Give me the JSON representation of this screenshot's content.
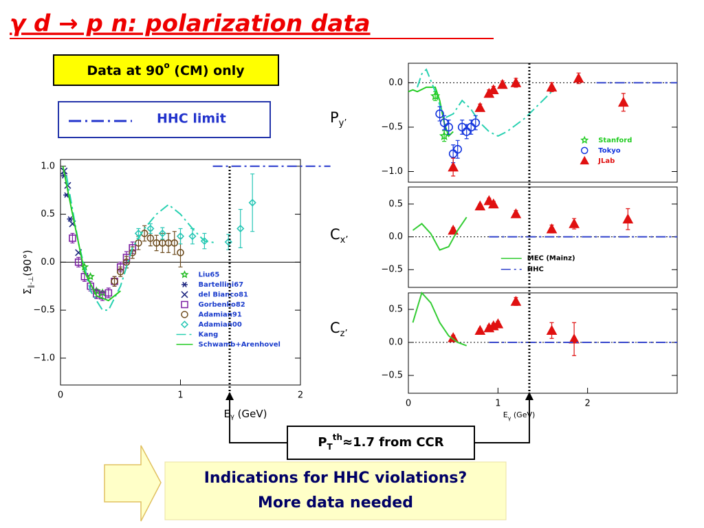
{
  "title": "γ d → p n: polarization data",
  "data_note": {
    "text": "Data at 90",
    "sup": "o",
    "tail": " (CM) only"
  },
  "hhc_box": "HHC limit",
  "threshold_box": {
    "main": "P",
    "sub": "T",
    "sup": "th",
    "tail": "≈1.7 from CCR"
  },
  "conclusion": [
    "Indications for HHC violations?",
    "More data needed"
  ],
  "chart_data": [
    {
      "type": "scatter",
      "ylabel": "Σ",
      "ylabel_sub": "∥-⊥",
      "ylabel_tail": "(90°)",
      "xlabel": "E",
      "xlabel_sub": "γ",
      "xlabel_tail": " (GeV)",
      "xlim": [
        0,
        2
      ],
      "ylim": [
        -1.28,
        1.07
      ],
      "xticks": [
        0,
        1,
        2
      ],
      "yticks": [
        {
          "value": 1,
          "label": "1.0"
        },
        0.5,
        {
          "value": 0,
          "label": "0.0"
        },
        {
          "value": -0.5,
          "label": "−0.5"
        },
        {
          "value": -1,
          "label": "−1.0"
        }
      ],
      "zero_line": "solid",
      "legend": "lower right",
      "threshold_x": 1.41,
      "series": [
        {
          "name": "Liu65",
          "color": "#22bb22",
          "marker": "star",
          "x": [
            0.2,
            0.25,
            0.3,
            0.35
          ],
          "values": [
            -0.05,
            -0.15,
            -0.3,
            -0.32
          ]
        },
        {
          "name": "Bartellini67",
          "color": "#1a237e",
          "marker": "asterisk",
          "x": [
            0.03,
            0.05,
            0.08
          ],
          "values": [
            0.9,
            0.7,
            0.45
          ]
        },
        {
          "name": "del Bianco81",
          "color": "#1a237e",
          "marker": "x",
          "x": [
            0.03,
            0.06,
            0.1,
            0.15
          ],
          "values": [
            0.95,
            0.8,
            0.4,
            0.1
          ]
        },
        {
          "name": "Gorbenko82",
          "color": "#7b1fa2",
          "marker": "square",
          "x": [
            0.1,
            0.15,
            0.2,
            0.25,
            0.3,
            0.35,
            0.4,
            0.45,
            0.5,
            0.55,
            0.6
          ],
          "values": [
            0.25,
            0.0,
            -0.15,
            -0.25,
            -0.33,
            -0.35,
            -0.32,
            -0.2,
            -0.05,
            0.05,
            0.15
          ],
          "errors": [
            0.05,
            0.05,
            0.05,
            0.05,
            0.05,
            0.05,
            0.05,
            0.05,
            0.05,
            0.06,
            0.06
          ]
        },
        {
          "name": "Adamian91",
          "color": "#6d4c1f",
          "marker": "circle",
          "x": [
            0.45,
            0.5,
            0.55,
            0.6,
            0.65,
            0.7,
            0.75,
            0.8,
            0.85,
            0.9,
            0.95,
            1.0
          ],
          "values": [
            -0.2,
            -0.1,
            0.0,
            0.1,
            0.2,
            0.3,
            0.25,
            0.2,
            0.2,
            0.2,
            0.2,
            0.1
          ],
          "errors": [
            0.05,
            0.05,
            0.06,
            0.06,
            0.07,
            0.08,
            0.08,
            0.08,
            0.1,
            0.1,
            0.12,
            0.15
          ]
        },
        {
          "name": "Adamian00",
          "color": "#26c6b5",
          "marker": "diamond",
          "x": [
            0.65,
            0.75,
            0.85,
            1.0,
            1.1,
            1.2,
            1.4,
            1.5,
            1.6
          ],
          "values": [
            0.3,
            0.35,
            0.3,
            0.27,
            0.27,
            0.22,
            0.21,
            0.35,
            0.62
          ],
          "errors": [
            0.05,
            0.05,
            0.06,
            0.08,
            0.08,
            0.08,
            0.08,
            0.2,
            0.3
          ]
        },
        {
          "name": "Kang",
          "color": "#26d0b0",
          "line": "dashdot",
          "x": [
            0.05,
            0.15,
            0.25,
            0.35,
            0.4,
            0.5,
            0.6,
            0.7,
            0.8,
            0.9,
            1.0,
            1.1,
            1.2,
            1.3
          ],
          "values": [
            0.9,
            0.2,
            -0.3,
            -0.5,
            -0.5,
            -0.25,
            0.15,
            0.35,
            0.5,
            0.6,
            0.5,
            0.35,
            0.22,
            0.2
          ]
        },
        {
          "name": "Schwamb+Arenhovel",
          "color": "#22cc22",
          "line": "solid",
          "x": [
            0.02,
            0.1,
            0.2,
            0.3,
            0.4,
            0.5
          ],
          "values": [
            1.0,
            0.5,
            -0.1,
            -0.35,
            -0.4,
            -0.3
          ]
        },
        {
          "color": "#2233cc",
          "line": "dashdot",
          "x": [
            1.27,
            2.25
          ],
          "values": [
            1,
            1
          ]
        }
      ]
    },
    {
      "type": "scatter",
      "ylabel": "P",
      "ylabel_sub": "y’",
      "xlim": [
        0,
        3
      ],
      "ylim": [
        -1.12,
        0.22
      ],
      "yticks": [
        {
          "value": 0,
          "label": "0.0"
        },
        {
          "value": -0.5,
          "label": "−0.5"
        },
        {
          "value": -1,
          "label": "−1.0"
        }
      ],
      "zero_line": "dotted",
      "legend": "lower right",
      "threshold_x": 1.35,
      "series": [
        {
          "color": "#22cc22",
          "line": "solid",
          "x": [
            0.0,
            0.05,
            0.1,
            0.2,
            0.3,
            0.35,
            0.4,
            0.45,
            0.5
          ],
          "values": [
            -0.1,
            -0.08,
            -0.1,
            -0.05,
            -0.05,
            -0.2,
            -0.45,
            -0.6,
            -0.55
          ]
        },
        {
          "color": "#26d0b0",
          "line": "dashdot",
          "x": [
            0.1,
            0.15,
            0.2,
            0.3,
            0.4,
            0.5,
            0.6,
            0.7,
            0.8,
            0.9,
            1.0,
            1.1,
            1.3,
            1.5,
            1.6
          ],
          "values": [
            -0.05,
            0.1,
            0.15,
            -0.1,
            -0.4,
            -0.35,
            -0.2,
            -0.3,
            -0.45,
            -0.55,
            -0.6,
            -0.55,
            -0.4,
            -0.2,
            -0.1
          ]
        },
        {
          "name": "Stanford",
          "color": "#22cc22",
          "marker": "star",
          "x": [
            0.3,
            0.4
          ],
          "values": [
            -0.15,
            -0.6
          ],
          "errors": [
            0.05,
            0.06
          ]
        },
        {
          "name": "Tokyo",
          "color": "#1133dd",
          "marker": "circle",
          "x": [
            0.35,
            0.4,
            0.45,
            0.5,
            0.55,
            0.6,
            0.65,
            0.7,
            0.75
          ],
          "values": [
            -0.35,
            -0.45,
            -0.5,
            -0.8,
            -0.75,
            -0.5,
            -0.55,
            -0.5,
            -0.45
          ],
          "errors": [
            0.08,
            0.08,
            0.08,
            0.1,
            0.1,
            0.08,
            0.08,
            0.08,
            0.08
          ]
        },
        {
          "name": "JLab",
          "color": "#e01010",
          "marker": "triangle",
          "x": [
            0.5,
            0.8,
            0.9,
            0.95,
            1.05,
            1.2,
            1.6,
            1.9,
            2.4
          ],
          "values": [
            -0.95,
            -0.28,
            -0.12,
            -0.08,
            -0.02,
            0.0,
            -0.05,
            0.05,
            -0.22
          ],
          "errors": [
            0.1,
            0.04,
            0.04,
            0.04,
            0.04,
            0.05,
            0.05,
            0.06,
            0.1
          ]
        },
        {
          "color": "#3344cc",
          "line": "dashdot",
          "x": [
            2.1,
            3.0
          ],
          "values": [
            0,
            0
          ]
        }
      ]
    },
    {
      "type": "scatter",
      "ylabel": "C",
      "ylabel_sub": "x’",
      "xlim": [
        0,
        3
      ],
      "ylim": [
        -0.77,
        0.76
      ],
      "yticks": [
        0.5,
        {
          "value": 0,
          "label": "0.0"
        },
        {
          "value": -0.5,
          "label": "−0.5"
        }
      ],
      "zero_line": "dotted",
      "legend": "lower right",
      "series": [
        {
          "color": "#e01010",
          "marker": "triangle",
          "x": [
            0.5,
            0.8,
            0.9,
            0.95,
            1.2,
            1.6,
            1.85,
            2.45
          ],
          "values": [
            0.1,
            0.47,
            0.55,
            0.5,
            0.35,
            0.12,
            0.2,
            0.27
          ],
          "errors": [
            0.04,
            0.03,
            0.04,
            0.04,
            0.05,
            0.06,
            0.08,
            0.16
          ]
        },
        {
          "name": "MEC (Mainz)",
          "color": "#33cc33",
          "line": "solid",
          "x": [
            0.05,
            0.15,
            0.25,
            0.35,
            0.45,
            0.55,
            0.65
          ],
          "values": [
            0.1,
            0.2,
            0.05,
            -0.2,
            -0.15,
            0.1,
            0.3
          ]
        },
        {
          "name": "HHC",
          "color": "#3344cc",
          "line": "dashdot",
          "x": [
            0.9,
            3.0
          ],
          "values": [
            0,
            0
          ]
        }
      ]
    },
    {
      "type": "scatter",
      "ylabel": "C",
      "ylabel_sub": "z’",
      "xlabel": "E",
      "xlabel_sub": "γ",
      "xlabel_tail": " (GeV)",
      "xlim": [
        0,
        3
      ],
      "ylim": [
        -0.77,
        0.75
      ],
      "xticks": [
        0,
        1,
        2
      ],
      "yticks": [
        0.5,
        {
          "value": 0,
          "label": "0.0"
        },
        {
          "value": -0.5,
          "label": "−0.5"
        }
      ],
      "zero_line": "dotted",
      "series": [
        {
          "color": "#e01010",
          "marker": "triangle",
          "x": [
            0.5,
            0.8,
            0.9,
            0.95,
            1.0,
            1.2,
            1.6,
            1.85
          ],
          "values": [
            0.07,
            0.18,
            0.22,
            0.25,
            0.28,
            0.62,
            0.18,
            0.05
          ],
          "errors": [
            0.04,
            0.03,
            0.04,
            0.04,
            0.04,
            0.06,
            0.12,
            0.25
          ]
        },
        {
          "color": "#33cc33",
          "line": "solid",
          "x": [
            0.05,
            0.15,
            0.25,
            0.35,
            0.45,
            0.55,
            0.65
          ],
          "values": [
            0.3,
            0.75,
            0.6,
            0.3,
            0.1,
            0.0,
            -0.05
          ]
        },
        {
          "color": "#3344cc",
          "line": "dashdot",
          "x": [
            0.9,
            3.0
          ],
          "values": [
            0,
            0
          ]
        }
      ]
    }
  ]
}
